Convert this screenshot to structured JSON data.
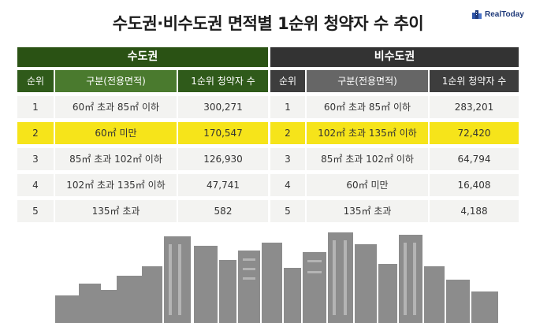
{
  "title": "수도권·비수도권 면적별 1순위 청약자 수 추이",
  "logo": {
    "text": "RealToday"
  },
  "chart_data": {
    "type": "table",
    "columns": [
      "순위",
      "구분(전용면적)",
      "1순위 청약자 수"
    ],
    "tables": [
      {
        "title": "수도권",
        "rows": [
          {
            "rank": "1",
            "category": "60㎡ 초과 85㎡ 이하",
            "value": "300,271",
            "highlight": false
          },
          {
            "rank": "2",
            "category": "60㎡ 미만",
            "value": "170,547",
            "highlight": true
          },
          {
            "rank": "3",
            "category": "85㎡ 초과 102㎡ 이하",
            "value": "126,930",
            "highlight": false
          },
          {
            "rank": "4",
            "category": "102㎡ 초과 135㎡ 이하",
            "value": "47,741",
            "highlight": false
          },
          {
            "rank": "5",
            "category": "135㎡ 초과",
            "value": "582",
            "highlight": false
          }
        ]
      },
      {
        "title": "비수도권",
        "rows": [
          {
            "rank": "1",
            "category": "60㎡ 초과 85㎡ 이하",
            "value": "283,201",
            "highlight": false
          },
          {
            "rank": "2",
            "category": "102㎡ 초과 135㎡ 이하",
            "value": "72,420",
            "highlight": true
          },
          {
            "rank": "3",
            "category": "85㎡ 초과 102㎡ 이하",
            "value": "64,794",
            "highlight": false
          },
          {
            "rank": "4",
            "category": "60㎡ 미만",
            "value": "16,408",
            "highlight": false
          },
          {
            "rank": "5",
            "category": "135㎡ 초과",
            "value": "4,188",
            "highlight": false
          }
        ]
      }
    ]
  },
  "colors": {
    "capital_header": "#2a5214",
    "noncapital_header": "#333333",
    "highlight": "#f6e41a",
    "skyline": "#8c8c8c"
  }
}
